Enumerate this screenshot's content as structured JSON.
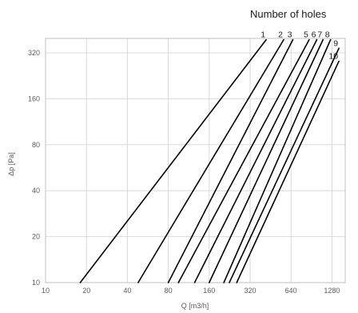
{
  "chart_data": {
    "type": "line",
    "title": "Number of holes",
    "xlabel": "Q [m3/h]",
    "ylabel": "Δp  [Pa]",
    "x_scale": "log2",
    "y_scale": "log2",
    "xlim": [
      10,
      1440
    ],
    "ylim": [
      10,
      400
    ],
    "x_ticks": [
      10,
      20,
      40,
      80,
      160,
      320,
      640,
      1280
    ],
    "y_ticks": [
      10,
      20,
      40,
      80,
      160,
      320
    ],
    "grid": true,
    "legend": "labels at line ends, top",
    "series": [
      {
        "name": "1",
        "x": [
          18,
          420
        ],
        "y": [
          10,
          390
        ]
      },
      {
        "name": "2",
        "x": [
          48,
          565
        ],
        "y": [
          10,
          390
        ]
      },
      {
        "name": "3",
        "x": [
          80,
          660
        ],
        "y": [
          10,
          390
        ]
      },
      {
        "name": "5",
        "x": [
          95,
          870
        ],
        "y": [
          10,
          390
        ]
      },
      {
        "name": "6",
        "x": [
          125,
          990
        ],
        "y": [
          10,
          390
        ]
      },
      {
        "name": "7",
        "x": [
          160,
          1100
        ],
        "y": [
          10,
          390
        ]
      },
      {
        "name": "8",
        "x": [
          205,
          1250
        ],
        "y": [
          10,
          390
        ]
      },
      {
        "name": "9",
        "x": [
          225,
          1440
        ],
        "y": [
          10,
          343
        ]
      },
      {
        "name": "10",
        "x": [
          255,
          1440
        ],
        "y": [
          10,
          282
        ]
      }
    ]
  }
}
